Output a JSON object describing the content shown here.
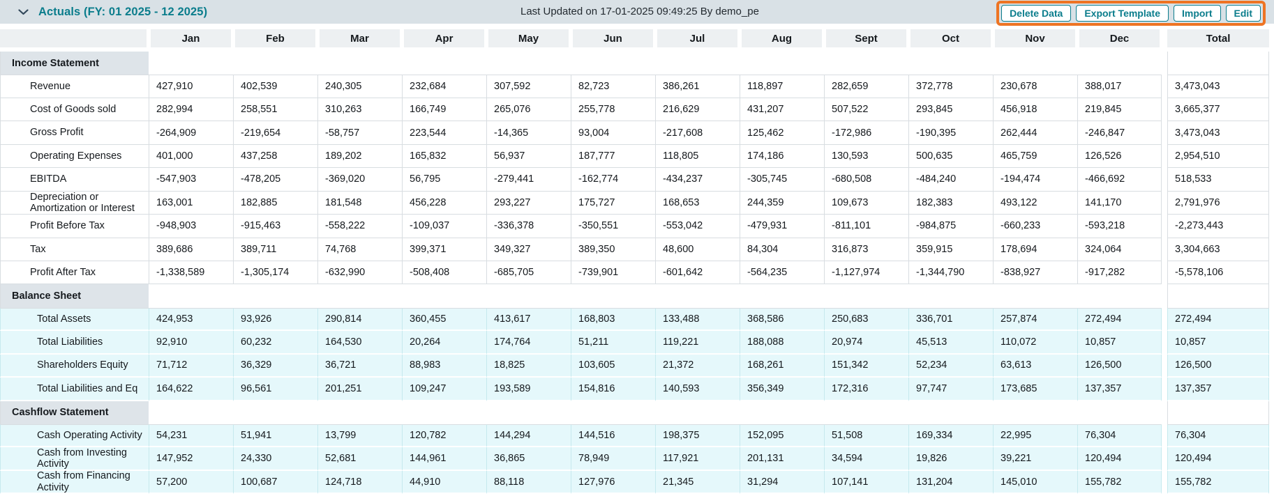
{
  "topbar": {
    "title": "Actuals (FY: 01 2025 - 12 2025)",
    "last_updated": "Last Updated on 17-01-2025 09:49:25 By demo_pe",
    "buttons": [
      {
        "label": "Delete Data"
      },
      {
        "label": "Export Template"
      },
      {
        "label": "Import"
      },
      {
        "label": "Edit"
      }
    ],
    "collapse_icon": "chevron-down-icon"
  },
  "colors": {
    "accent_teal": "#0b7d8c",
    "annotation_orange": "#ee7423",
    "topbar_bg": "#d9e1e6",
    "column_header_bg": "#edf0f2",
    "section_header_bg": "#dee4e9",
    "highlight_row_bg": "#e5f8fb"
  },
  "table": {
    "column_headers": [
      "Jan",
      "Feb",
      "Mar",
      "Apr",
      "May",
      "Jun",
      "Jul",
      "Aug",
      "Sept",
      "Oct",
      "Nov",
      "Dec"
    ],
    "total_header": "Total",
    "sections": [
      {
        "title": "Income Statement",
        "highlight": false,
        "rows": [
          {
            "label": "Revenue",
            "values": [
              "427,910",
              "402,539",
              "240,305",
              "232,684",
              "307,592",
              "82,723",
              "386,261",
              "118,897",
              "282,659",
              "372,778",
              "230,678",
              "388,017"
            ],
            "total": "3,473,043"
          },
          {
            "label": "Cost of Goods sold",
            "values": [
              "282,994",
              "258,551",
              "310,263",
              "166,749",
              "265,076",
              "255,778",
              "216,629",
              "431,207",
              "507,522",
              "293,845",
              "456,918",
              "219,845"
            ],
            "total": "3,665,377"
          },
          {
            "label": "Gross Profit",
            "values": [
              "-264,909",
              "-219,654",
              "-58,757",
              "223,544",
              "-14,365",
              "93,004",
              "-217,608",
              "125,462",
              "-172,986",
              "-190,395",
              "262,444",
              "-246,847"
            ],
            "total": "3,473,043"
          },
          {
            "label": "Operating Expenses",
            "values": [
              "401,000",
              "437,258",
              "189,202",
              "165,832",
              "56,937",
              "187,777",
              "118,805",
              "174,186",
              "130,593",
              "500,635",
              "465,759",
              "126,526"
            ],
            "total": "2,954,510"
          },
          {
            "label": "EBITDA",
            "values": [
              "-547,903",
              "-478,205",
              "-369,020",
              "56,795",
              "-279,441",
              "-162,774",
              "-434,237",
              "-305,745",
              "-680,508",
              "-484,240",
              "-194,474",
              "-466,692"
            ],
            "total": "518,533"
          },
          {
            "label": "Depreciation or Amortization or Interest",
            "values": [
              "163,001",
              "182,885",
              "181,548",
              "456,228",
              "293,227",
              "175,727",
              "168,653",
              "244,359",
              "109,673",
              "182,383",
              "493,122",
              "141,170"
            ],
            "total": "2,791,976"
          },
          {
            "label": "Profit Before Tax",
            "values": [
              "-948,903",
              "-915,463",
              "-558,222",
              "-109,037",
              "-336,378",
              "-350,551",
              "-553,042",
              "-479,931",
              "-811,101",
              "-984,875",
              "-660,233",
              "-593,218"
            ],
            "total": "-2,273,443"
          },
          {
            "label": "Tax",
            "values": [
              "389,686",
              "389,711",
              "74,768",
              "399,371",
              "349,327",
              "389,350",
              "48,600",
              "84,304",
              "316,873",
              "359,915",
              "178,694",
              "324,064"
            ],
            "total": "3,304,663"
          },
          {
            "label": "Profit After Tax",
            "values": [
              "-1,338,589",
              "-1,305,174",
              "-632,990",
              "-508,408",
              "-685,705",
              "-739,901",
              "-601,642",
              "-564,235",
              "-1,127,974",
              "-1,344,790",
              "-838,927",
              "-917,282"
            ],
            "total": "-5,578,106"
          }
        ]
      },
      {
        "title": "Balance Sheet",
        "highlight": true,
        "rows": [
          {
            "label": "Total Assets",
            "values": [
              "424,953",
              "93,926",
              "290,814",
              "360,455",
              "413,617",
              "168,803",
              "133,488",
              "368,586",
              "250,683",
              "336,701",
              "257,874",
              "272,494"
            ],
            "total": "272,494"
          },
          {
            "label": "Total Liabilities",
            "values": [
              "92,910",
              "60,232",
              "164,530",
              "20,264",
              "174,764",
              "51,211",
              "119,221",
              "188,088",
              "20,974",
              "45,513",
              "110,072",
              "10,857"
            ],
            "total": "10,857"
          },
          {
            "label": "Shareholders Equity",
            "values": [
              "71,712",
              "36,329",
              "36,721",
              "88,983",
              "18,825",
              "103,605",
              "21,372",
              "168,261",
              "151,342",
              "52,234",
              "63,613",
              "126,500"
            ],
            "total": "126,500"
          },
          {
            "label": "Total Liabilities and Eq",
            "values": [
              "164,622",
              "96,561",
              "201,251",
              "109,247",
              "193,589",
              "154,816",
              "140,593",
              "356,349",
              "172,316",
              "97,747",
              "173,685",
              "137,357"
            ],
            "total": "137,357"
          }
        ]
      },
      {
        "title": "Cashflow Statement",
        "highlight": true,
        "rows": [
          {
            "label": "Cash Operating Activity",
            "values": [
              "54,231",
              "51,941",
              "13,799",
              "120,782",
              "144,294",
              "144,516",
              "198,375",
              "152,095",
              "51,508",
              "169,334",
              "22,995",
              "76,304"
            ],
            "total": "76,304"
          },
          {
            "label": "Cash from Investing Activity",
            "values": [
              "147,952",
              "24,330",
              "52,681",
              "144,961",
              "36,865",
              "78,949",
              "117,921",
              "201,131",
              "34,594",
              "19,826",
              "39,221",
              "120,494"
            ],
            "total": "120,494"
          },
          {
            "label": "Cash from Financing Activity",
            "values": [
              "57,200",
              "100,687",
              "124,718",
              "44,910",
              "88,118",
              "127,976",
              "21,345",
              "31,294",
              "107,141",
              "131,204",
              "145,010",
              "155,782"
            ],
            "total": "155,782"
          }
        ]
      }
    ]
  }
}
